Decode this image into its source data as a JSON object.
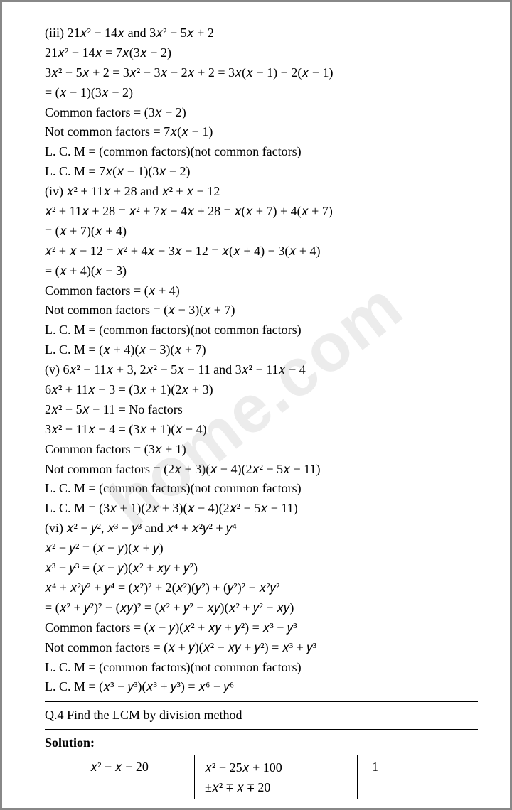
{
  "watermark": "home.com",
  "lines": {
    "l1": "(iii) 21𝑥² − 14𝑥 and 3𝑥² − 5𝑥 + 2",
    "l2": "21𝑥² − 14𝑥 = 7𝑥(3𝑥 − 2)",
    "l3": "3𝑥² − 5𝑥 + 2 = 3𝑥² − 3𝑥 − 2𝑥 + 2 = 3𝑥(𝑥 − 1) − 2(𝑥 − 1)",
    "l4": "= (𝑥 − 1)(3𝑥 − 2)",
    "l5": "Common factors = (3𝑥 − 2)",
    "l6": "Not common factors = 7𝑥(𝑥 − 1)",
    "l7": "L. C. M = (common factors)(not common factors)",
    "l8": "L. C. M = 7𝑥(𝑥 − 1)(3𝑥 − 2)",
    "l9": "(iv) 𝑥² + 11𝑥 + 28 and 𝑥² + 𝑥 − 12",
    "l10": "𝑥² + 11𝑥 + 28 = 𝑥² + 7𝑥 + 4𝑥 + 28 = 𝑥(𝑥 + 7) + 4(𝑥 + 7)",
    "l11": "= (𝑥 + 7)(𝑥 + 4)",
    "l12": "𝑥² + 𝑥 − 12 = 𝑥² + 4𝑥 − 3𝑥 − 12 = 𝑥(𝑥 + 4) − 3(𝑥 + 4)",
    "l13": "= (𝑥 + 4)(𝑥 − 3)",
    "l14": "Common factors = (𝑥 + 4)",
    "l15": "Not common factors = (𝑥 − 3)(𝑥 + 7)",
    "l16": "L. C. M = (common factors)(not common factors)",
    "l17": "L. C. M = (𝑥 + 4)(𝑥 − 3)(𝑥 + 7)",
    "l18": "(v) 6𝑥² + 11𝑥 + 3, 2𝑥² − 5𝑥 − 11 and 3𝑥² − 11𝑥 − 4",
    "l19": "6𝑥² + 11𝑥 + 3 = (3𝑥 + 1)(2𝑥 + 3)",
    "l20": "2𝑥² − 5𝑥 − 11 = No factors",
    "l21": "3𝑥² − 11𝑥 − 4 = (3𝑥 + 1)(𝑥 − 4)",
    "l22": "Common factors = (3𝑥 + 1)",
    "l23": "Not common factors = (2𝑥 + 3)(𝑥 − 4)(2𝑥² − 5𝑥 − 11)",
    "l24": "L. C. M = (common factors)(not common factors)",
    "l25": "L. C. M = (3𝑥 + 1)(2𝑥 + 3)(𝑥 − 4)(2𝑥² − 5𝑥 − 11)",
    "l26": "(vi) 𝑥² − 𝑦², 𝑥³ − 𝑦³ and 𝑥⁴ + 𝑥²𝑦² + 𝑦⁴",
    "l27": "𝑥² − 𝑦² = (𝑥 − 𝑦)(𝑥 + 𝑦)",
    "l28": "𝑥³ − 𝑦³ = (𝑥 − 𝑦)(𝑥² + 𝑥𝑦 + 𝑦²)",
    "l29": "𝑥⁴ + 𝑥²𝑦² + 𝑦⁴ = (𝑥²)² + 2(𝑥²)(𝑦²) + (𝑦²)² − 𝑥²𝑦²",
    "l30": "= (𝑥² + 𝑦²)² − (𝑥𝑦)² = (𝑥² + 𝑦² − 𝑥𝑦)(𝑥² + 𝑦² + 𝑥𝑦)",
    "l31": "Common factors = (𝑥 − 𝑦)(𝑥² + 𝑥𝑦 + 𝑦²) = 𝑥³ − 𝑦³",
    "l32": "Not common factors = (𝑥 + 𝑦)(𝑥² − 𝑥𝑦 + 𝑦²) = 𝑥³ + 𝑦³",
    "l33": "L. C. M = (common factors)(not common factors)",
    "l34": "L. C. M = (𝑥³ − 𝑦³)(𝑥³ + 𝑦³) = 𝑥⁶ − 𝑦⁶"
  },
  "q4": "Q.4 Find the LCM by division method",
  "solution_label": "Solution:",
  "division": {
    "divisor": "𝑥² − 𝑥 − 20",
    "dividend": "𝑥² − 25𝑥 + 100",
    "subtrahend": "±𝑥² ∓ 𝑥 ∓ 20",
    "quotient": "1"
  }
}
